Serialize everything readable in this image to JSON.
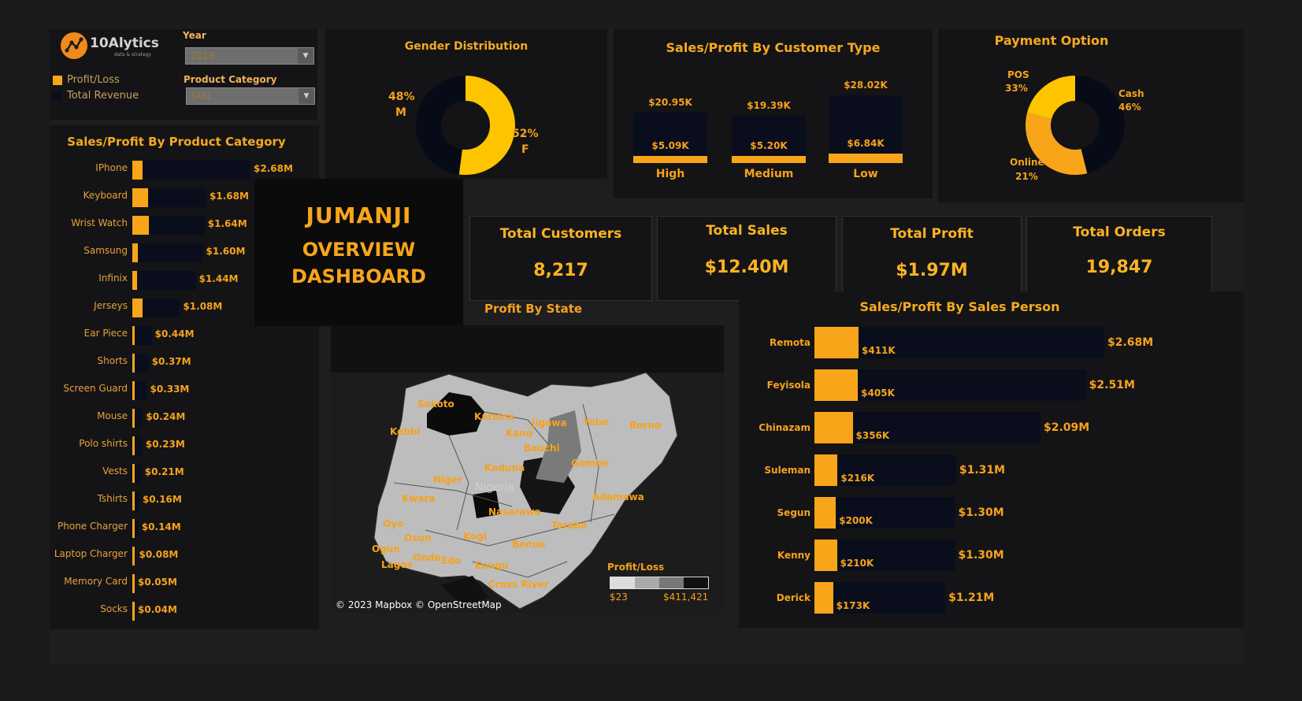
{
  "brand": {
    "name": "10Alytics",
    "tagline": "data & strategy"
  },
  "filters": {
    "year_label": "Year",
    "year_value": "2016",
    "category_label": "Product Category",
    "category_value": "(All)"
  },
  "legend": [
    {
      "label": "Profit/Loss",
      "color": "#f9a51a"
    },
    {
      "label": "Total Revenue",
      "color": "#0a0e1c"
    }
  ],
  "title": {
    "line1": "JUMANJI",
    "line2": "OVERVIEW",
    "line3": "DASHBOARD"
  },
  "gender": {
    "title": "Gender Distribution",
    "m_pct": "48%",
    "m_label": "M",
    "f_pct": "52%",
    "f_label": "F",
    "chart_data": {
      "type": "pie",
      "categories": [
        "M",
        "F"
      ],
      "values": [
        48,
        52
      ]
    }
  },
  "customer_type": {
    "title": "Sales/Profit By Customer Type",
    "chart_data": {
      "type": "bar",
      "categories": [
        "High",
        "Medium",
        "Low"
      ],
      "series": [
        {
          "name": "Total Revenue",
          "values": [
            20.95,
            19.39,
            28.02
          ],
          "labels": [
            "$20.95K",
            "$19.39K",
            "$28.02K"
          ]
        },
        {
          "name": "Profit/Loss",
          "values": [
            5.09,
            5.2,
            6.84
          ],
          "labels": [
            "$5.09K",
            "$5.20K",
            "$6.84K"
          ]
        }
      ]
    }
  },
  "payment": {
    "title": "Payment Option",
    "chart_data": {
      "type": "pie",
      "categories": [
        "Cash",
        "POS",
        "Online"
      ],
      "values": [
        46,
        33,
        21
      ]
    },
    "cash_label": "Cash",
    "cash_pct": "46%",
    "pos_label": "POS",
    "pos_pct": "33%",
    "online_label": "Online",
    "online_pct": "21%"
  },
  "kpis": [
    {
      "title": "Total Customers",
      "value": "8,217"
    },
    {
      "title": "Total Sales",
      "value": "$12.40M"
    },
    {
      "title": "Total Profit",
      "value": "$1.97M"
    },
    {
      "title": "Total Orders",
      "value": "19,847"
    }
  ],
  "product": {
    "title": "Sales/Profit By Product Category",
    "chart_data": {
      "type": "bar",
      "categories": [
        "IPhone",
        "Keyboard",
        "Wrist Watch",
        "Samsung",
        "Infinix",
        "Jerseys",
        "Ear Piece",
        "Shorts",
        "Screen Guard",
        "Mouse",
        "Polo shirts",
        "Vests",
        "Tshirts",
        "Phone Charger",
        "Laptop Charger",
        "Memory Card",
        "Socks"
      ],
      "series": [
        {
          "name": "Total Revenue",
          "values": [
            2.68,
            1.68,
            1.64,
            1.6,
            1.44,
            1.08,
            0.44,
            0.37,
            0.33,
            0.24,
            0.23,
            0.21,
            0.16,
            0.14,
            0.08,
            0.05,
            0.04
          ],
          "labels": [
            "$2.68M",
            "$1.68M",
            "$1.64M",
            "$1.60M",
            "$1.44M",
            "$1.08M",
            "$0.44M",
            "$0.37M",
            "$0.33M",
            "$0.24M",
            "$0.23M",
            "$0.21M",
            "$0.16M",
            "$0.14M",
            "$0.08M",
            "$0.05M",
            "$0.04M"
          ]
        },
        {
          "name": "Profit/Loss",
          "values": [
            0.23,
            0.35,
            0.37,
            0.13,
            0.11,
            0.24,
            0.04,
            0.03,
            0.02,
            0.02,
            0.02,
            0.01,
            0.01,
            0.01,
            0.01,
            0.01,
            0.01
          ]
        }
      ]
    }
  },
  "map": {
    "title": "Profit By State",
    "credit": "© 2023 Mapbox © OpenStreetMap",
    "legend_title": "Profit/Loss",
    "legend_min": "$23",
    "legend_max": "$411,421",
    "country": "Nigeria",
    "states": [
      "Sokoto",
      "Katsina",
      "Kebbi",
      "Jigawa",
      "Yobe",
      "Borno",
      "Kano",
      "Bauchi",
      "Gombe",
      "Kaduna",
      "Niger",
      "Kwara",
      "Adamawa",
      "Nasarawa",
      "Oyo",
      "Kogi",
      "Taraba",
      "Osun",
      "Ogun",
      "Benue",
      "Ondo",
      "Edo",
      "Lagos",
      "Enugu",
      "Cross River"
    ]
  },
  "salesperson": {
    "title": "Sales/Profit By Sales Person",
    "chart_data": {
      "type": "bar",
      "categories": [
        "Remota",
        "Feyisola",
        "Chinazam",
        "Suleman",
        "Segun",
        "Kenny",
        "Derick"
      ],
      "series": [
        {
          "name": "Total Revenue",
          "values": [
            2.68,
            2.51,
            2.09,
            1.31,
            1.3,
            1.3,
            1.21
          ],
          "labels": [
            "$2.68M",
            "$2.51M",
            "$2.09M",
            "$1.31M",
            "$1.30M",
            "$1.30M",
            "$1.21M"
          ]
        },
        {
          "name": "Profit/Loss",
          "values": [
            411,
            405,
            356,
            216,
            200,
            210,
            173
          ],
          "labels": [
            "$411K",
            "$405K",
            "$356K",
            "$216K",
            "$200K",
            "$210K",
            "$173K"
          ]
        }
      ]
    }
  },
  "colors": {
    "accent": "#f9a51a",
    "revenue": "#0a0e1c",
    "gold": "#ffc400"
  }
}
